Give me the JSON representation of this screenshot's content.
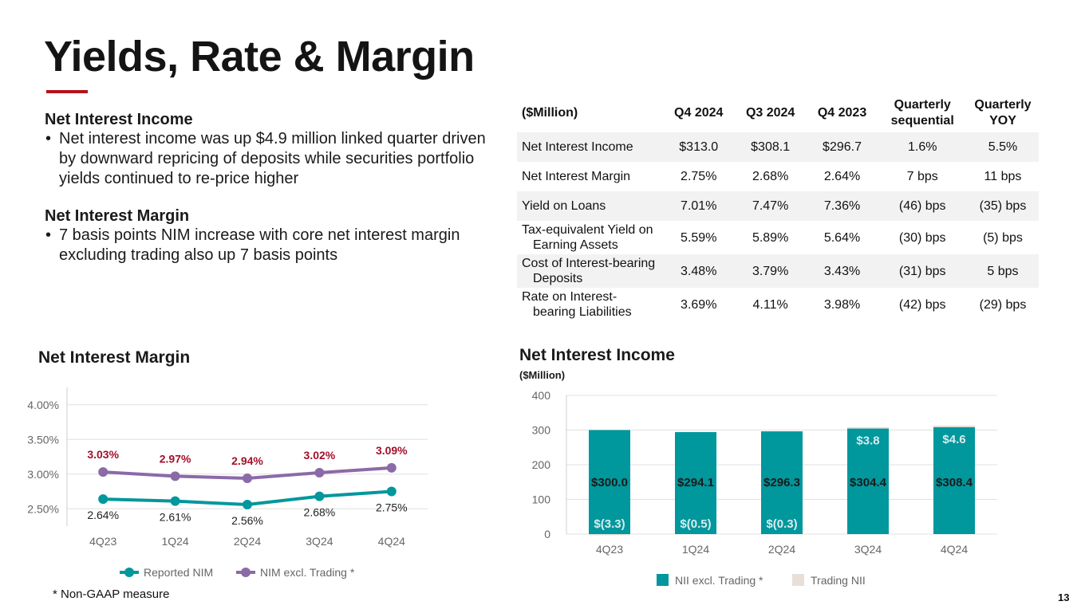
{
  "title": "Yields, Rate & Margin",
  "colors": {
    "accent": "#b5121b",
    "teal": "#00979d",
    "purple": "#8b6aa8",
    "red_label": "#a3102a",
    "trading_nii": "#e8dfd8"
  },
  "bullets": [
    {
      "heading": "Net Interest Income",
      "text": "Net interest income was up $4.9 million linked quarter driven by downward repricing of deposits while securities portfolio yields continued to re-price higher"
    },
    {
      "heading": "Net Interest Margin",
      "text": "7 basis points NIM increase with core net interest margin excluding trading also up 7 basis points"
    }
  ],
  "table": {
    "header": {
      "label": "($Million)",
      "c1": "Q4 2024",
      "c2": "Q3 2024",
      "c3": "Q4 2023",
      "c4a": "Quarterly",
      "c4b": "sequential",
      "c5a": "Quarterly",
      "c5b": "YOY"
    },
    "rows": [
      {
        "label": "Net Interest Income",
        "label2": "",
        "q4_2024": "$313.0",
        "q3_2024": "$308.1",
        "q4_2023": "$296.7",
        "seq": "1.6%",
        "yoy": "5.5%"
      },
      {
        "label": "Net Interest Margin",
        "label2": "",
        "q4_2024": "2.75%",
        "q3_2024": "2.68%",
        "q4_2023": "2.64%",
        "seq": "7 bps",
        "yoy": "11 bps"
      },
      {
        "label": "Yield on Loans",
        "label2": "",
        "q4_2024": "7.01%",
        "q3_2024": "7.47%",
        "q4_2023": "7.36%",
        "seq": "(46) bps",
        "yoy": "(35) bps"
      },
      {
        "label": "Tax-equivalent Yield on",
        "label2": "Earning Assets",
        "q4_2024": "5.59%",
        "q3_2024": "5.89%",
        "q4_2023": "5.64%",
        "seq": "(30) bps",
        "yoy": "(5) bps"
      },
      {
        "label": "Cost of Interest-bearing",
        "label2": "Deposits",
        "q4_2024": "3.48%",
        "q3_2024": "3.79%",
        "q4_2023": "3.43%",
        "seq": "(31) bps",
        "yoy": "5 bps"
      },
      {
        "label": "Rate on Interest-",
        "label2": "bearing Liabilities",
        "q4_2024": "3.69%",
        "q3_2024": "4.11%",
        "q4_2023": "3.98%",
        "seq": "(42) bps",
        "yoy": "(29) bps"
      }
    ]
  },
  "chart_data": [
    {
      "type": "line",
      "title": "Net Interest Margin",
      "categories": [
        "4Q23",
        "1Q24",
        "2Q24",
        "3Q24",
        "4Q24"
      ],
      "ylim": [
        2.25,
        4.25
      ],
      "yticks": [
        "2.50%",
        "3.00%",
        "3.50%",
        "4.00%"
      ],
      "ytick_values": [
        2.5,
        3.0,
        3.5,
        4.0
      ],
      "grid": true,
      "legend": "bottom",
      "series": [
        {
          "name": "Reported NIM",
          "values": [
            2.64,
            2.61,
            2.56,
            2.68,
            2.75
          ],
          "labels": [
            "2.64%",
            "2.61%",
            "2.56%",
            "2.68%",
            "2.75%"
          ]
        },
        {
          "name": "NIM excl. Trading *",
          "values": [
            3.03,
            2.97,
            2.94,
            3.02,
            3.09
          ],
          "labels": [
            "3.03%",
            "2.97%",
            "2.94%",
            "3.02%",
            "3.09%"
          ]
        }
      ]
    },
    {
      "type": "bar",
      "title": "Net Interest Income",
      "subtitle": "($Million)",
      "categories": [
        "4Q23",
        "1Q24",
        "2Q24",
        "3Q24",
        "4Q24"
      ],
      "ylim": [
        0,
        400
      ],
      "yticks": [
        "0",
        "100",
        "200",
        "300",
        "400"
      ],
      "ytick_values": [
        0,
        100,
        200,
        300,
        400
      ],
      "grid": true,
      "legend": "bottom",
      "stacked": true,
      "series": [
        {
          "name": "NII excl. Trading *",
          "values": [
            300.0,
            294.1,
            296.3,
            304.4,
            308.4
          ],
          "labels": [
            "$300.0",
            "$294.1",
            "$296.3",
            "$304.4",
            "$308.4"
          ]
        },
        {
          "name": "Trading NII",
          "values": [
            -3.3,
            -0.5,
            -0.3,
            3.8,
            4.6
          ],
          "labels": [
            "$(3.3)",
            "$(0.5)",
            "$(0.3)",
            "$3.8",
            "$4.6"
          ]
        }
      ]
    }
  ],
  "footnote": "*   Non-GAAP measure",
  "page_number": "13"
}
